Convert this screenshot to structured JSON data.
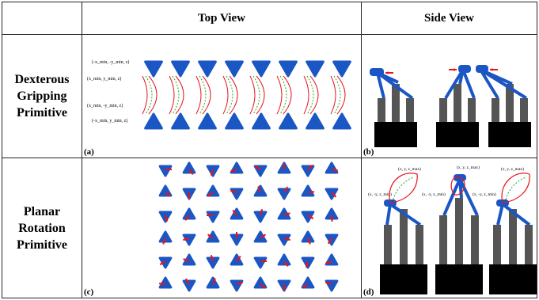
{
  "headers": {
    "col1": "",
    "col2": "Top View",
    "col3": "Side View"
  },
  "rows": [
    {
      "label_lines": [
        "Dexterous",
        "Gripping",
        "Primitive"
      ],
      "panel_a": {
        "tag": "(a)",
        "annotations": [
          "(-x_min, -y_min, z)",
          "(x_min, y_min, z)",
          "(x_min, -y_min, z)",
          "(-x_min, y_min, z)"
        ]
      },
      "panel_b": {
        "tag": "(b)"
      }
    },
    {
      "label_lines": [
        "Planar",
        "Rotation",
        "Primitive"
      ],
      "panel_c": {
        "tag": "(c)"
      },
      "panel_d": {
        "tag": "(d)",
        "annotations": [
          "(x, y, z_max)",
          "(x, y, z_max)",
          "(x, y, z_max)",
          "(x, -y, z_min)",
          "(x, -y, z_min)",
          "(x, -y, z_min)"
        ]
      }
    }
  ],
  "colors": {
    "robot_blue": "#1a56c4",
    "arrow_red": "#e8141c",
    "path_green": "#27a52a",
    "link_gray": "#555555",
    "base_black": "#000000"
  }
}
